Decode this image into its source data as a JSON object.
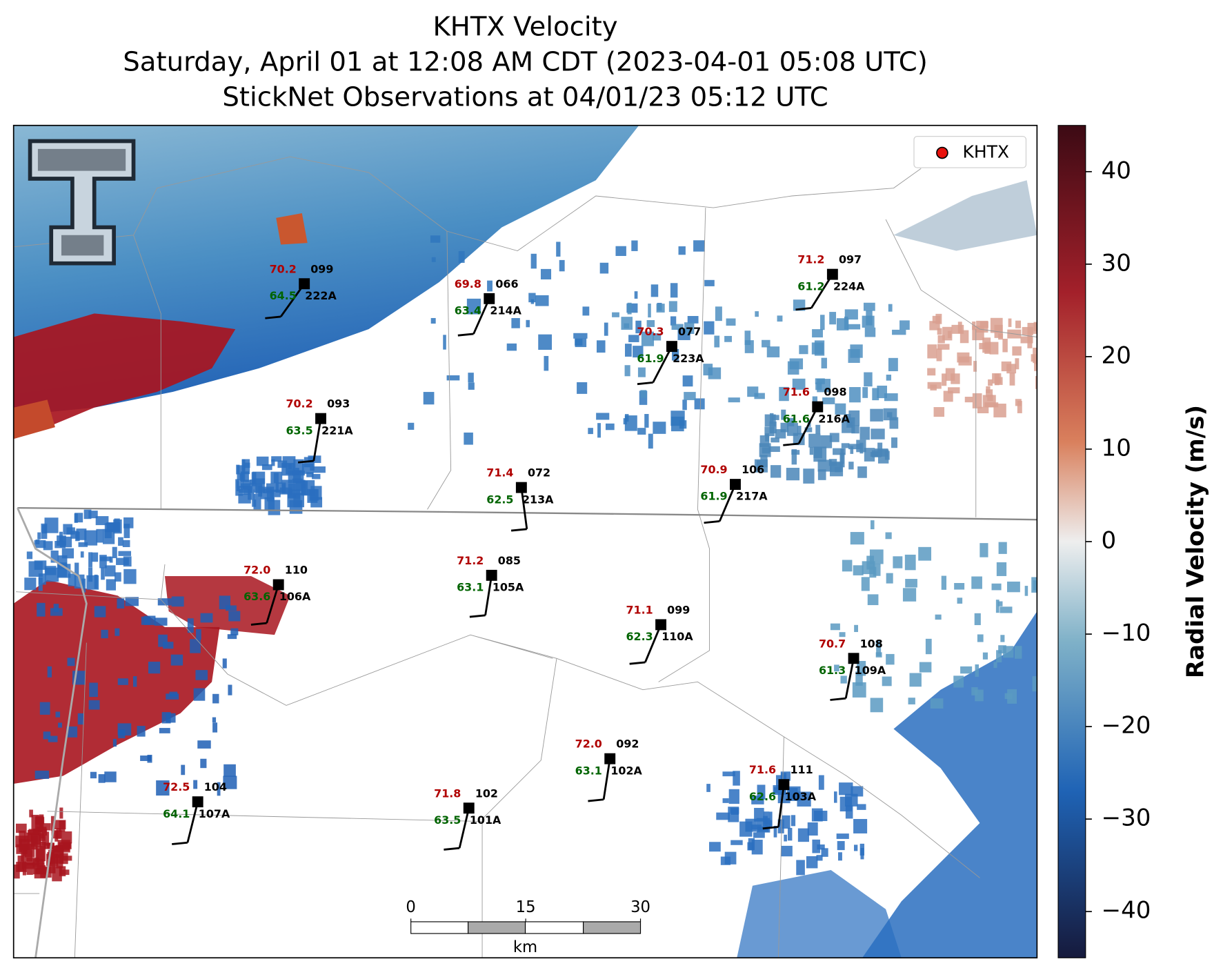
{
  "title": {
    "lines": [
      "KHTX Velocity",
      "Saturday, April 01 at 12:08 AM CDT (2023-04-01 05:08 UTC)",
      "StickNet Observations at 04/01/23 05:12 UTC"
    ]
  },
  "legend": {
    "label": "KHTX"
  },
  "stations": [
    {
      "id": "222A",
      "temperature": "70.2",
      "dewpoint": "64.5",
      "direction": "099"
    },
    {
      "id": "214A",
      "temperature": "69.8",
      "dewpoint": "63.4",
      "direction": "066"
    },
    {
      "id": "223A",
      "temperature": "70.3",
      "dewpoint": "61.9",
      "direction": "077"
    },
    {
      "id": "224A",
      "temperature": "71.2",
      "dewpoint": "61.2",
      "direction": "097"
    },
    {
      "id": "221A",
      "temperature": "70.2",
      "dewpoint": "63.5",
      "direction": "093"
    },
    {
      "id": "216A",
      "temperature": "71.6",
      "dewpoint": "61.6",
      "direction": "098"
    },
    {
      "id": "213A",
      "temperature": "71.4",
      "dewpoint": "62.5",
      "direction": "072"
    },
    {
      "id": "217A",
      "temperature": "70.9",
      "dewpoint": "61.9",
      "direction": "106"
    },
    {
      "id": "106A",
      "temperature": "72.0",
      "dewpoint": "63.6",
      "direction": "110"
    },
    {
      "id": "105A",
      "temperature": "71.2",
      "dewpoint": "63.1",
      "direction": "085"
    },
    {
      "id": "110A",
      "temperature": "71.1",
      "dewpoint": "62.3",
      "direction": "099"
    },
    {
      "id": "109A",
      "temperature": "70.7",
      "dewpoint": "61.3",
      "direction": "108"
    },
    {
      "id": "102A",
      "temperature": "72.0",
      "dewpoint": "63.1",
      "direction": "092"
    },
    {
      "id": "103A",
      "temperature": "71.6",
      "dewpoint": "62.6",
      "direction": "111"
    },
    {
      "id": "107A",
      "temperature": "72.5",
      "dewpoint": "64.1",
      "direction": "104"
    },
    {
      "id": "101A",
      "temperature": "71.8",
      "dewpoint": "63.5",
      "direction": "102"
    }
  ],
  "colorbar": {
    "label": "Radial Velocity (m/s)",
    "lim": [
      -45,
      45
    ],
    "ticks": [
      {
        "value": -40,
        "label": "−40"
      },
      {
        "value": -30,
        "label": "−30"
      },
      {
        "value": -20,
        "label": "−20"
      },
      {
        "value": -10,
        "label": "−10"
      },
      0,
      10,
      20,
      30,
      40
    ]
  },
  "scale_bar": {
    "ticks": [
      0,
      15,
      30
    ],
    "unit": "km"
  }
}
